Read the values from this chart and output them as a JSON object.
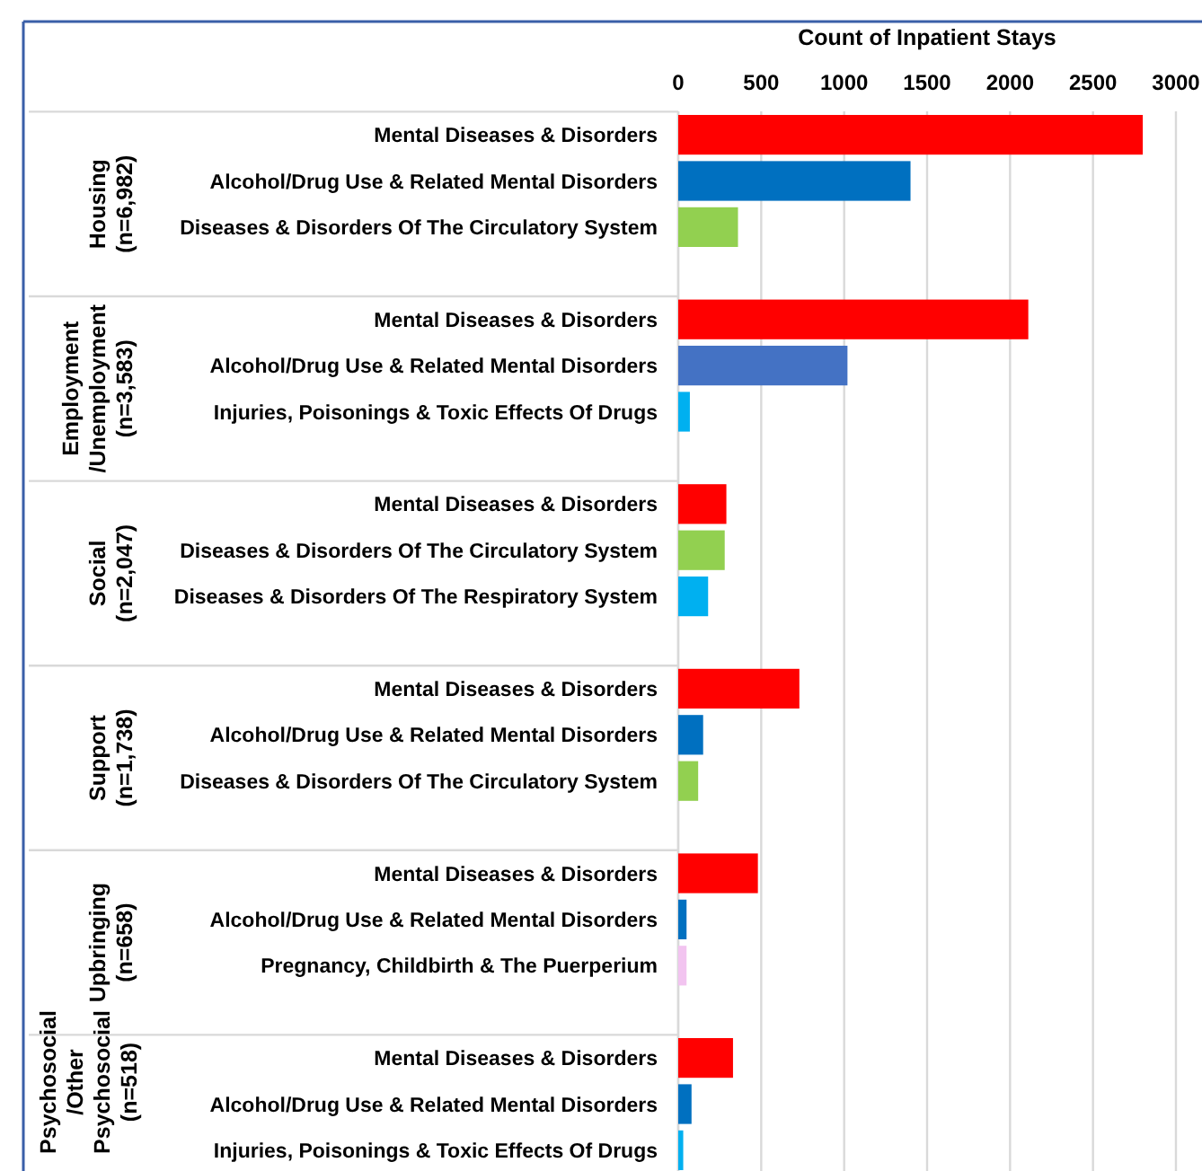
{
  "chart_data": {
    "type": "bar",
    "orientation": "horizontal",
    "xlabel": "Count of Inpatient Stays",
    "categories": [
      "Mental Diseases & Disorders",
      "Alcohol/Drug Use & Related Mental Disorders",
      "Diseases & Disorders Of The Circulatory System",
      null,
      "Mental Diseases & Disorders",
      "Alcohol/Drug Use & Related Mental Disorders",
      "Injuries, Poisonings & Toxic Effects Of Drugs",
      null,
      "Mental Diseases & Disorders",
      "Diseases & Disorders Of The Circulatory System",
      "Diseases & Disorders Of The Respiratory System",
      null,
      "Mental Diseases & Disorders",
      "Alcohol/Drug Use & Related Mental Disorders",
      "Diseases & Disorders Of The Circulatory System",
      null,
      "Mental Diseases & Disorders",
      "Alcohol/Drug Use & Related Mental Disorders",
      "Pregnancy, Childbirth & The Puerperium",
      null,
      "Mental Diseases & Disorders",
      "Alcohol/Drug Use & Related Mental Disorders",
      "Injuries, Poisonings & Toxic Effects Of Drugs"
    ],
    "values": [
      2800,
      1400,
      360,
      null,
      2110,
      1020,
      70,
      null,
      290,
      280,
      180,
      null,
      730,
      150,
      120,
      null,
      480,
      50,
      50,
      null,
      330,
      80,
      30
    ],
    "colors": [
      "#ff0000",
      "#0070c0",
      "#92d050",
      null,
      "#ff0000",
      "#4472c4",
      "#00b0f0",
      null,
      "#ff0000",
      "#92d050",
      "#00b0f0",
      null,
      "#ff0000",
      "#0070c0",
      "#92d050",
      null,
      "#ff0000",
      "#0070c0",
      "#f2c4f0",
      null,
      "#ff0000",
      "#0070c0",
      "#00b0f0"
    ],
    "annotations": [
      "Housing\n(n=6,982)",
      "Employment\n/Unemployment\n(n=3,583)",
      "Social\n(n=2,047)",
      "Support\n(n=1,738)",
      "Upbringing\n(n=658)",
      "Psychosocial\n/Other\nPsychosocial\n(n=518)"
    ],
    "xlim": [
      0,
      3000
    ],
    "xticks": [
      0,
      500,
      1000,
      1500,
      2000,
      2500,
      3000
    ],
    "grid": "x"
  }
}
